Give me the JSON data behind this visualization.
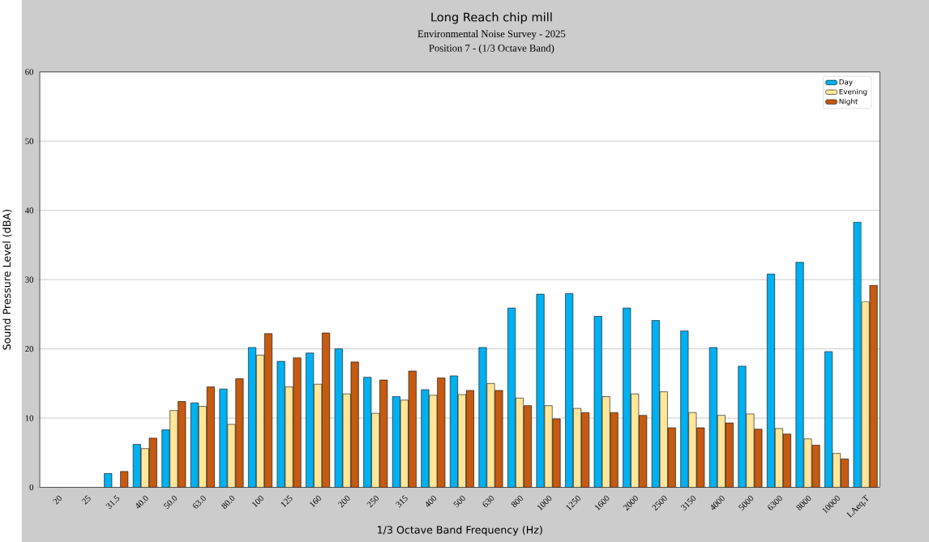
{
  "chart_data": {
    "type": "bar",
    "title": "Long Reach chip mill",
    "subtitle": "Environmental Noise Survey - 2025",
    "annotations": [
      "Position 7 - (1/3 Octave Band)"
    ],
    "xlabel": "1/3 Octave Band Frequency (Hz)",
    "ylabel": "Sound Pressure Level (dBA)",
    "categories": [
      "20",
      "25",
      "31.5",
      "40.0",
      "50.0",
      "63.0",
      "80.0",
      "100",
      "125",
      "160",
      "200",
      "250",
      "315",
      "400",
      "500",
      "630",
      "800",
      "1000",
      "1250",
      "1600",
      "2000",
      "2500",
      "3150",
      "4000",
      "5000",
      "6300",
      "8000",
      "10000",
      "LAeq,T"
    ],
    "series": [
      {
        "name": "Day",
        "color": "#00b0f0",
        "values": [
          null,
          null,
          2.0,
          6.2,
          8.3,
          12.2,
          14.2,
          20.2,
          18.2,
          19.4,
          20.0,
          15.9,
          13.1,
          14.1,
          16.1,
          20.2,
          25.9,
          27.9,
          28.0,
          24.7,
          25.9,
          24.1,
          22.6,
          20.2,
          17.5,
          30.8,
          32.5,
          19.6,
          38.3
        ]
      },
      {
        "name": "Evening",
        "color": "#ffe699",
        "values": [
          null,
          null,
          null,
          5.6,
          11.1,
          11.7,
          9.1,
          19.1,
          14.5,
          14.9,
          13.5,
          10.7,
          12.6,
          13.3,
          13.4,
          15.0,
          12.9,
          11.8,
          11.4,
          13.1,
          13.5,
          13.8,
          10.8,
          10.4,
          10.6,
          8.5,
          7.0,
          4.9,
          26.8
        ]
      },
      {
        "name": "Night",
        "color": "#c55a11",
        "values": [
          null,
          null,
          2.3,
          7.1,
          12.4,
          14.5,
          15.7,
          22.2,
          18.7,
          22.3,
          18.1,
          15.5,
          16.8,
          15.8,
          14.0,
          14.0,
          11.8,
          9.9,
          10.8,
          10.8,
          10.4,
          8.6,
          8.6,
          9.3,
          8.4,
          7.7,
          6.1,
          4.1,
          29.2
        ]
      }
    ],
    "ylim": [
      0,
      60
    ],
    "yticks": [
      0,
      10,
      20,
      30,
      40,
      50,
      60
    ],
    "grid": "y",
    "legend": "top right"
  }
}
